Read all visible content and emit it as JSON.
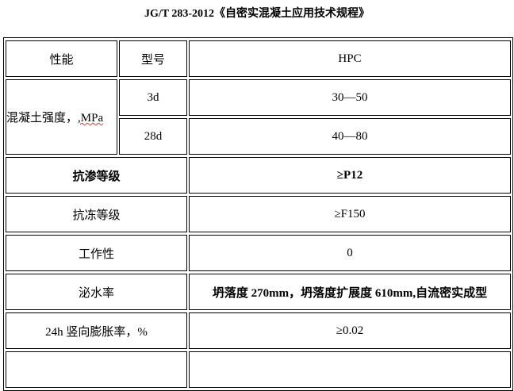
{
  "title": "JG/T 283-2012《自密实混凝土应用技术规程》",
  "header": {
    "property": "性能",
    "model": "型号",
    "value": "HPC"
  },
  "strength": {
    "label": "混凝土强度，",
    "unit": ",MPa",
    "rows": [
      {
        "age": "3d",
        "value": "30—50"
      },
      {
        "age": "28d",
        "value": "40—80"
      }
    ]
  },
  "rows": [
    {
      "label": "抗渗等级",
      "value": "≥P12",
      "bold": true
    },
    {
      "label": "抗冻等级",
      "value": "≥F150"
    },
    {
      "label": "工作性",
      "value": "0"
    },
    {
      "label": "泌水率",
      "value": "坍落度 270mm，坍落度扩展度 610mm,自流密实成型",
      "value_bold": true
    },
    {
      "label": "24h 竖向膨胀率，%",
      "value": "≥0.02"
    },
    {
      "label": "",
      "value": ""
    }
  ]
}
